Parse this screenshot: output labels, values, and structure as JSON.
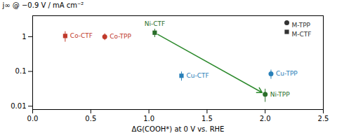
{
  "chart_data": {
    "type": "scatter",
    "xlabel": "ΔG(COOH*) at 0 V vs. RHE",
    "ylabel": "j∞ @ −0.9 V / mA cm⁻²",
    "log": "y",
    "xlim": [
      0.0,
      2.5
    ],
    "ylim": [
      0.008,
      4.0
    ],
    "xticks": [
      {
        "value": 0.0,
        "label": "0.0"
      },
      0.5,
      {
        "value": 1.0,
        "label": "1.0"
      },
      1.5,
      {
        "value": 2.0,
        "label": "2.0"
      },
      2.5
    ],
    "yticks": [
      0.01,
      0.1,
      1
    ],
    "legend": "upper right",
    "series": [
      {
        "name": "M-TPP",
        "marker": "circle",
        "color": "#333333",
        "labels": [
          "Co-TPP",
          "Cu-TPP",
          "Ni-TPP"
        ],
        "x": [
          0.62,
          2.05,
          2.0
        ],
        "values": [
          1.0,
          0.085,
          0.022
        ],
        "yerr": [
          0.22,
          0.025,
          0.009
        ],
        "colors": [
          "#c0392b",
          "#2980b9",
          "#2a6e2a"
        ]
      },
      {
        "name": "M-CTF",
        "marker": "square",
        "color": "#333333",
        "labels": [
          "Co-CTF",
          "Ni-CTF",
          "Cu-CTF"
        ],
        "x": [
          0.28,
          1.05,
          1.28
        ],
        "values": [
          1.05,
          1.3,
          0.075
        ],
        "yerr": [
          0.35,
          0.35,
          0.022
        ],
        "colors": [
          "#c0392b",
          "#2a6e2a",
          "#2980b9"
        ]
      }
    ],
    "annotations": [
      {
        "type": "arrow",
        "from": [
          1.05,
          1.3
        ],
        "to": [
          2.0,
          0.022
        ],
        "color": "#2d8a2d"
      }
    ]
  }
}
